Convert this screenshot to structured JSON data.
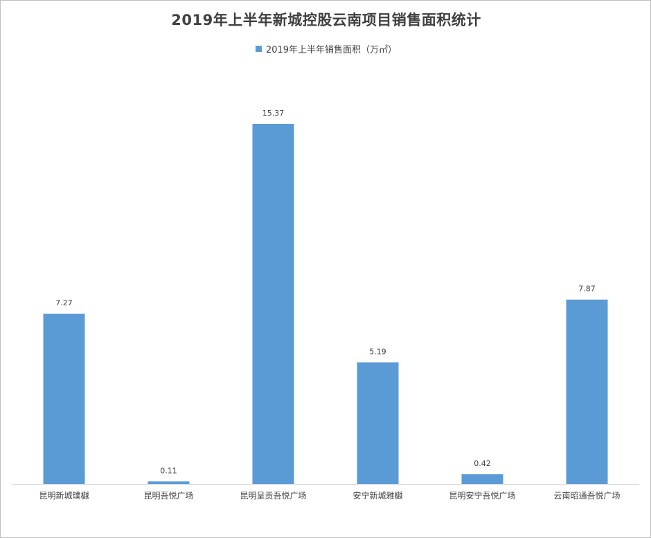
{
  "chart_data": {
    "type": "bar",
    "title": "2019年上半年新城控股云南项目销售面积统计",
    "categories": [
      "昆明新城璞樾",
      "昆明吾悦广场",
      "昆明呈贡吾悦广场",
      "安宁新城雅樾",
      "昆明安宁吾悦广场",
      "云南昭通吾悦广场"
    ],
    "series": [
      {
        "name": "2019年上半年销售面积（万㎡）",
        "values": [
          7.27,
          0.11,
          15.37,
          5.19,
          0.42,
          7.87
        ],
        "value_labels": [
          "7.27",
          "0.11",
          "15.37",
          "5.19",
          "0.42",
          "7.87"
        ],
        "color": "#5B9BD5"
      }
    ],
    "ylim": [
      0,
      15.37
    ],
    "grid": false,
    "legend_position": "top",
    "axis_color": "#d9d9d9"
  }
}
